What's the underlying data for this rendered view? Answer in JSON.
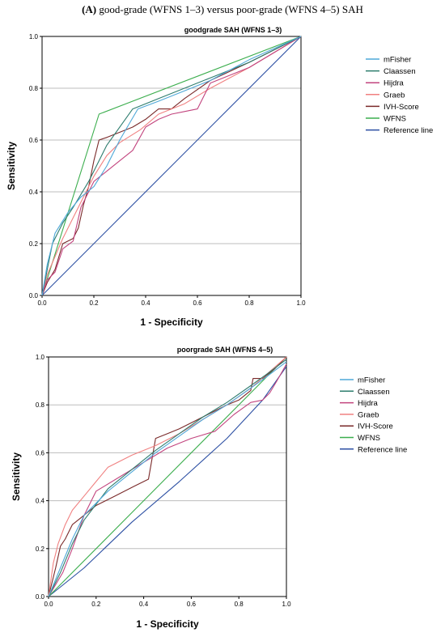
{
  "figure": {
    "label": "(A)",
    "caption": " good-grade (WFNS 1–3) versus poor-grade (WFNS 4–5) SAH"
  },
  "chart_data": [
    {
      "type": "line",
      "title": "goodgrade SAH (WFNS 1–3)",
      "xlabel": "1 - Specificity",
      "ylabel": "Sensitivity",
      "xlim": [
        0,
        1
      ],
      "ylim": [
        0,
        1
      ],
      "ticks": [
        "0.0",
        "0.2",
        "0.4",
        "0.6",
        "0.8",
        "1.0"
      ],
      "grid": "horizontal",
      "legend": "right",
      "series": [
        {
          "name": "mFisher",
          "color": "#4fa8d8",
          "x": [
            0,
            0.02,
            0.05,
            0.1,
            0.15,
            0.2,
            0.25,
            0.3,
            0.37,
            0.45,
            0.55,
            0.65,
            0.8,
            1.0
          ],
          "y": [
            0,
            0.12,
            0.24,
            0.32,
            0.38,
            0.42,
            0.5,
            0.6,
            0.72,
            0.75,
            0.79,
            0.83,
            0.91,
            1.0
          ]
        },
        {
          "name": "Claassen",
          "color": "#2e7d6e",
          "x": [
            0,
            0.02,
            0.04,
            0.08,
            0.12,
            0.18,
            0.25,
            0.35,
            0.45,
            0.55,
            0.65,
            0.8,
            1.0
          ],
          "y": [
            0,
            0.1,
            0.2,
            0.28,
            0.34,
            0.44,
            0.58,
            0.72,
            0.76,
            0.8,
            0.84,
            0.9,
            1.0
          ]
        },
        {
          "name": "Hijdra",
          "color": "#c2447e",
          "x": [
            0,
            0.02,
            0.05,
            0.08,
            0.12,
            0.15,
            0.2,
            0.25,
            0.3,
            0.35,
            0.4,
            0.45,
            0.5,
            0.55,
            0.6,
            0.65,
            0.8,
            1.0
          ],
          "y": [
            0,
            0.06,
            0.09,
            0.18,
            0.21,
            0.34,
            0.44,
            0.48,
            0.52,
            0.56,
            0.65,
            0.68,
            0.7,
            0.71,
            0.72,
            0.82,
            0.88,
            1.0
          ]
        },
        {
          "name": "Graeb",
          "color": "#f08080",
          "x": [
            0,
            0.02,
            0.05,
            0.08,
            0.12,
            0.16,
            0.2,
            0.25,
            0.3,
            0.38,
            0.45,
            0.55,
            0.65,
            0.8,
            1.0
          ],
          "y": [
            0,
            0.08,
            0.15,
            0.22,
            0.3,
            0.38,
            0.46,
            0.54,
            0.59,
            0.64,
            0.7,
            0.74,
            0.8,
            0.88,
            1.0
          ]
        },
        {
          "name": "IVH-Score",
          "color": "#7a2a2a",
          "x": [
            0,
            0.02,
            0.05,
            0.08,
            0.12,
            0.14,
            0.16,
            0.18,
            0.2,
            0.22,
            0.25,
            0.3,
            0.35,
            0.4,
            0.45,
            0.5,
            0.55,
            0.65,
            0.8,
            1.0
          ],
          "y": [
            0,
            0.05,
            0.1,
            0.2,
            0.22,
            0.26,
            0.35,
            0.42,
            0.52,
            0.6,
            0.61,
            0.63,
            0.65,
            0.68,
            0.72,
            0.72,
            0.76,
            0.83,
            0.9,
            1.0
          ]
        },
        {
          "name": "WFNS",
          "color": "#3cae4e",
          "x": [
            0,
            0.22,
            1.0
          ],
          "y": [
            0,
            0.7,
            1.0
          ]
        },
        {
          "name": "Reference line",
          "color": "#2c4fa3",
          "x": [
            0,
            1
          ],
          "y": [
            0,
            1
          ]
        }
      ]
    },
    {
      "type": "line",
      "title": "poorgrade SAH (WFNS 4–5)",
      "xlabel": "1 - Specificity",
      "ylabel": "Sensitivity",
      "xlim": [
        0,
        1
      ],
      "ylim": [
        0,
        1
      ],
      "ticks": [
        "0.0",
        "0.2",
        "0.4",
        "0.6",
        "0.8",
        "1.0"
      ],
      "grid": "horizontal",
      "legend": "right",
      "series": [
        {
          "name": "mFisher",
          "color": "#4fa8d8",
          "x": [
            0,
            0.05,
            0.1,
            0.15,
            0.25,
            0.35,
            0.45,
            0.55,
            0.65,
            0.75,
            0.85,
            0.92,
            1.0
          ],
          "y": [
            0,
            0.12,
            0.24,
            0.34,
            0.44,
            0.52,
            0.6,
            0.67,
            0.74,
            0.8,
            0.87,
            0.92,
            0.98
          ]
        },
        {
          "name": "Claassen",
          "color": "#2e7d6e",
          "x": [
            0,
            0.05,
            0.1,
            0.15,
            0.25,
            0.35,
            0.45,
            0.55,
            0.65,
            0.75,
            0.85,
            0.92,
            1.0
          ],
          "y": [
            0,
            0.1,
            0.22,
            0.32,
            0.45,
            0.53,
            0.61,
            0.68,
            0.75,
            0.81,
            0.88,
            0.93,
            0.99
          ]
        },
        {
          "name": "Hijdra",
          "color": "#c2447e",
          "x": [
            0,
            0.03,
            0.06,
            0.1,
            0.15,
            0.2,
            0.3,
            0.4,
            0.5,
            0.6,
            0.7,
            0.78,
            0.85,
            0.9,
            0.93,
            0.96,
            1.0
          ],
          "y": [
            0,
            0.05,
            0.1,
            0.2,
            0.34,
            0.44,
            0.5,
            0.56,
            0.62,
            0.66,
            0.69,
            0.76,
            0.81,
            0.82,
            0.85,
            0.9,
            0.97
          ]
        },
        {
          "name": "Graeb",
          "color": "#f08080",
          "x": [
            0,
            0.02,
            0.04,
            0.07,
            0.1,
            0.15,
            0.2,
            0.25,
            0.35,
            0.45,
            0.55,
            0.65,
            0.75,
            0.85,
            1.0
          ],
          "y": [
            0,
            0.14,
            0.22,
            0.3,
            0.36,
            0.42,
            0.48,
            0.54,
            0.59,
            0.63,
            0.68,
            0.74,
            0.8,
            0.87,
            1.0
          ]
        },
        {
          "name": "IVH-Score",
          "color": "#7a2a2a",
          "x": [
            0,
            0.03,
            0.05,
            0.07,
            0.1,
            0.15,
            0.2,
            0.28,
            0.36,
            0.42,
            0.45,
            0.5,
            0.55,
            0.65,
            0.75,
            0.8,
            0.85,
            0.86,
            0.9,
            0.95,
            1.0
          ],
          "y": [
            0,
            0.12,
            0.21,
            0.24,
            0.3,
            0.34,
            0.38,
            0.42,
            0.46,
            0.49,
            0.66,
            0.68,
            0.7,
            0.75,
            0.8,
            0.82,
            0.86,
            0.91,
            0.91,
            0.95,
            1.0
          ]
        },
        {
          "name": "WFNS",
          "color": "#3cae4e",
          "x": [
            0,
            1.0
          ],
          "y": [
            0,
            1.0
          ]
        },
        {
          "name": "Reference line",
          "color": "#2c4fa3",
          "x": [
            0,
            0.15,
            0.35,
            0.55,
            0.75,
            0.9,
            1.0
          ],
          "y": [
            0,
            0.12,
            0.31,
            0.48,
            0.66,
            0.82,
            0.96
          ]
        }
      ]
    }
  ]
}
